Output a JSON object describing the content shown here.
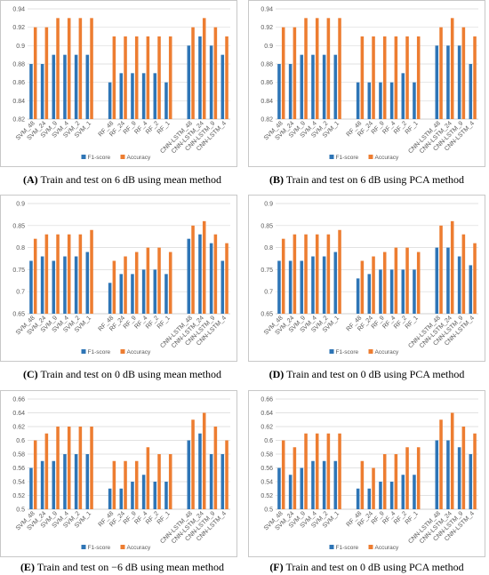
{
  "colors": {
    "f1": "#2E75B6",
    "acc": "#ED7D31",
    "grid": "#d9d9d9",
    "axis": "#bfbfbf",
    "text": "#595959"
  },
  "chart_data": [
    {
      "type": "bar",
      "panel_label": "(A)",
      "caption": "Train and test on 6 dB using mean method",
      "ylim": [
        0.82,
        0.94
      ],
      "yticks": [
        "0.82",
        "0.84",
        "0.86",
        "0.88",
        "0.9",
        "0.92",
        "0.94"
      ],
      "categories": [
        "SVM_48",
        "SVM_24",
        "SVM_9",
        "SVM_4",
        "SVM_2",
        "SVM_1",
        "",
        "RF_48",
        "RF_24",
        "RF_9",
        "RF_4",
        "RF_2",
        "RF_1",
        "",
        "CNN-LSTM_48",
        "CNN-LSTM_24",
        "CNN-LSTM_9",
        "CNN-LSTM_4"
      ],
      "series": [
        {
          "name": "F1-score",
          "values": [
            0.88,
            0.88,
            0.89,
            0.89,
            0.89,
            0.89,
            null,
            0.86,
            0.87,
            0.87,
            0.87,
            0.87,
            0.86,
            null,
            0.9,
            0.91,
            0.9,
            0.89
          ]
        },
        {
          "name": "Accuracy",
          "values": [
            0.92,
            0.92,
            0.93,
            0.93,
            0.93,
            0.93,
            null,
            0.91,
            0.91,
            0.91,
            0.91,
            0.91,
            0.91,
            null,
            0.92,
            0.93,
            0.92,
            0.91
          ]
        }
      ]
    },
    {
      "type": "bar",
      "panel_label": "(B)",
      "caption": "Train and test on 6 dB using PCA method",
      "ylim": [
        0.82,
        0.94
      ],
      "yticks": [
        "0.82",
        "0.84",
        "0.86",
        "0.88",
        "0.9",
        "0.92",
        "0.94"
      ],
      "categories": [
        "SVM_48",
        "SVM_24",
        "SVM_9",
        "SVM_4",
        "SVM_2",
        "SVM_1",
        "",
        "RF_48",
        "RF_24",
        "RF_9",
        "RF_4",
        "RF_2",
        "RF_1",
        "",
        "CNN-LSTM_48",
        "CNN-LSTM_24",
        "CNN-LSTM_9",
        "CNN-LSTM_4"
      ],
      "series": [
        {
          "name": "F1-score",
          "values": [
            0.88,
            0.88,
            0.89,
            0.89,
            0.89,
            0.89,
            null,
            0.86,
            0.86,
            0.86,
            0.86,
            0.87,
            0.86,
            null,
            0.9,
            0.9,
            0.9,
            0.88
          ]
        },
        {
          "name": "Accuracy",
          "values": [
            0.92,
            0.92,
            0.93,
            0.93,
            0.93,
            0.93,
            null,
            0.91,
            0.91,
            0.91,
            0.91,
            0.91,
            0.91,
            null,
            0.92,
            0.93,
            0.92,
            0.91
          ]
        }
      ]
    },
    {
      "type": "bar",
      "panel_label": "(C)",
      "caption": "Train and test on 0 dB using mean method",
      "ylim": [
        0.65,
        0.9
      ],
      "yticks": [
        "0.65",
        "0.7",
        "0.75",
        "0.8",
        "0.85",
        "0.9"
      ],
      "categories": [
        "SVM_48",
        "SVM_24",
        "SVM_9",
        "SVM_4",
        "SVM_2",
        "SVM_1",
        "",
        "RF_48",
        "RF_24",
        "RF_9",
        "RF_4",
        "RF_2",
        "RF_1",
        "",
        "CNN-LSTM_48",
        "CNN-LSTM_24",
        "CNN-LSTM_9",
        "CNN-LSTM_4"
      ],
      "series": [
        {
          "name": "F1-score",
          "values": [
            0.77,
            0.78,
            0.77,
            0.78,
            0.78,
            0.79,
            null,
            0.72,
            0.74,
            0.74,
            0.75,
            0.75,
            0.74,
            null,
            0.82,
            0.83,
            0.81,
            0.77
          ]
        },
        {
          "name": "Accuracy",
          "values": [
            0.82,
            0.83,
            0.83,
            0.83,
            0.83,
            0.84,
            null,
            0.77,
            0.78,
            0.79,
            0.8,
            0.8,
            0.79,
            null,
            0.85,
            0.86,
            0.83,
            0.81
          ]
        }
      ]
    },
    {
      "type": "bar",
      "panel_label": "(D)",
      "caption": "Train and test on 0 dB using PCA method",
      "ylim": [
        0.65,
        0.9
      ],
      "yticks": [
        "0.65",
        "0.7",
        "0.75",
        "0.8",
        "0.85",
        "0.9"
      ],
      "categories": [
        "SVM_48",
        "SVM_24",
        "SVM_9",
        "SVM_4",
        "SVM_2",
        "SVM_1",
        "",
        "RF_48",
        "RF_24",
        "RF_9",
        "RF_4",
        "RF_2",
        "RF_1",
        "",
        "CNN-LSTM_48",
        "CNN-LSTM_24",
        "CNN-LSTM_9",
        "CNN-LSTM_4"
      ],
      "series": [
        {
          "name": "F1-score",
          "values": [
            0.77,
            0.77,
            0.77,
            0.78,
            0.78,
            0.79,
            null,
            0.73,
            0.74,
            0.75,
            0.75,
            0.75,
            0.75,
            null,
            0.8,
            0.8,
            0.78,
            0.76
          ]
        },
        {
          "name": "Accuracy",
          "values": [
            0.82,
            0.83,
            0.83,
            0.83,
            0.83,
            0.84,
            null,
            0.77,
            0.78,
            0.79,
            0.8,
            0.8,
            0.79,
            null,
            0.85,
            0.86,
            0.83,
            0.81
          ]
        }
      ]
    },
    {
      "type": "bar",
      "panel_label": "(E)",
      "caption": "Train and test on −6 dB using mean method",
      "ylim": [
        0.5,
        0.66
      ],
      "yticks": [
        "0.5",
        "0.52",
        "0.54",
        "0.56",
        "0.58",
        "0.6",
        "0.62",
        "0.64",
        "0.66"
      ],
      "categories": [
        "SVM_48",
        "SVM_24",
        "SVM_9",
        "SVM_4",
        "SVM_2",
        "SVM_1",
        "",
        "RF_48",
        "RF_24",
        "RF_9",
        "RF_4",
        "RF_2",
        "RF_1",
        "",
        "CNN-LSTM_48",
        "CNN-LSTM_24",
        "CNN-LSTM_9",
        "CNN-LSTM_4"
      ],
      "series": [
        {
          "name": "F1-score",
          "values": [
            0.56,
            0.57,
            0.57,
            0.58,
            0.58,
            0.58,
            null,
            0.53,
            0.53,
            0.54,
            0.55,
            0.54,
            0.54,
            null,
            0.6,
            0.61,
            0.58,
            0.58
          ]
        },
        {
          "name": "Accuracy",
          "values": [
            0.6,
            0.61,
            0.62,
            0.62,
            0.62,
            0.62,
            null,
            0.57,
            0.57,
            0.57,
            0.59,
            0.58,
            0.58,
            null,
            0.63,
            0.64,
            0.62,
            0.6
          ]
        }
      ]
    },
    {
      "type": "bar",
      "panel_label": "(F)",
      "caption": "Train and test on 0 dB using PCA method",
      "ylim": [
        0.5,
        0.66
      ],
      "yticks": [
        "0.5",
        "0.52",
        "0.54",
        "0.56",
        "0.58",
        "0.6",
        "0.62",
        "0.64",
        "0.66"
      ],
      "categories": [
        "SVM_48",
        "SVM_24",
        "SVM_9",
        "SVM_4",
        "SVM_2",
        "SVM_1",
        "",
        "RF_48",
        "RF_24",
        "RF_9",
        "RF_4",
        "RF_2",
        "RF_1",
        "",
        "CNN-LSTM_48",
        "CNN-LSTM_24",
        "CNN-LSTM_9",
        "CNN-LSTM_4"
      ],
      "series": [
        {
          "name": "F1-score",
          "values": [
            0.56,
            0.55,
            0.56,
            0.57,
            0.57,
            0.57,
            null,
            0.53,
            0.53,
            0.54,
            0.54,
            0.55,
            0.55,
            null,
            0.6,
            0.6,
            0.59,
            0.58
          ]
        },
        {
          "name": "Accuracy",
          "values": [
            0.6,
            0.59,
            0.61,
            0.61,
            0.61,
            0.61,
            null,
            0.57,
            0.56,
            0.58,
            0.58,
            0.59,
            0.59,
            null,
            0.63,
            0.64,
            0.62,
            0.61
          ]
        }
      ]
    }
  ]
}
